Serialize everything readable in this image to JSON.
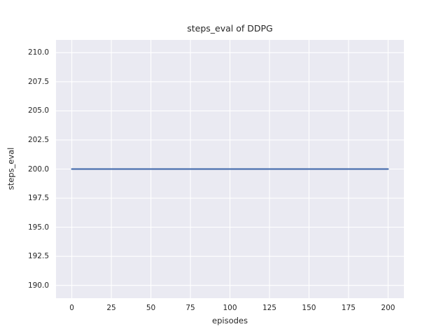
{
  "chart_data": {
    "type": "line",
    "title": "steps_eval of DDPG",
    "xlabel": "episodes",
    "ylabel": "steps_eval",
    "xlim": [
      -10,
      210
    ],
    "ylim": [
      188.9,
      211.1
    ],
    "x_ticks": [
      0,
      25,
      50,
      75,
      100,
      125,
      150,
      175,
      200
    ],
    "x_tick_labels": [
      "0",
      "25",
      "50",
      "75",
      "100",
      "125",
      "150",
      "175",
      "200"
    ],
    "y_ticks": [
      190.0,
      192.5,
      195.0,
      197.5,
      200.0,
      202.5,
      205.0,
      207.5,
      210.0
    ],
    "y_tick_labels": [
      "190.0",
      "192.5",
      "195.0",
      "197.5",
      "200.0",
      "202.5",
      "205.0",
      "207.5",
      "210.0"
    ],
    "grid": true,
    "legend": false,
    "series": [
      {
        "name": "steps_eval",
        "color": "#4C72B0",
        "x": [
          0,
          200
        ],
        "y": [
          200.0,
          200.0
        ]
      }
    ],
    "colors": {
      "figure_background": "#FFFFFF",
      "axes_background": "#EAEAF2",
      "grid": "#FFFFFF",
      "text": "#262626"
    }
  }
}
